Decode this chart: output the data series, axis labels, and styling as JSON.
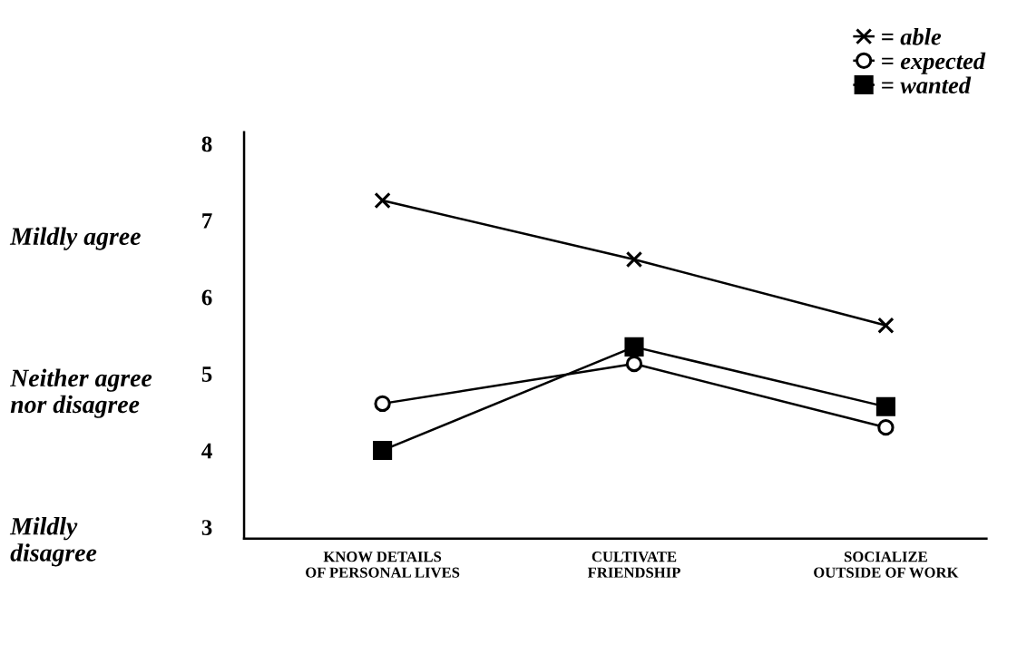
{
  "chart_data": {
    "type": "line",
    "categories": [
      "KNOW DETAILS\nOF PERSONAL LIVES",
      "CULTIVATE\nFRIENDSHIP",
      "SOCIALIZE\nOUTSIDE OF WORK"
    ],
    "series": [
      {
        "name": "= able",
        "color": "#000000",
        "marker": "cross",
        "values": [
          7.26,
          6.49,
          5.63
        ]
      },
      {
        "name": "= expected",
        "color": "#000000",
        "marker": "circle",
        "values": [
          4.61,
          5.13,
          4.3
        ]
      },
      {
        "name": "= wanted",
        "color": "#000000",
        "marker": "square",
        "values": [
          4.0,
          5.35,
          4.57
        ]
      }
    ],
    "ylim": [
      2.85,
      8.15
    ],
    "yticks": [
      3,
      4,
      5,
      6,
      7,
      8
    ],
    "annotations": [
      "Mildly agree",
      "Neither agree\nnor disagree",
      "Mildly\ndisagree"
    ],
    "grid": false,
    "legend": "top right",
    "line_style": "solid"
  }
}
